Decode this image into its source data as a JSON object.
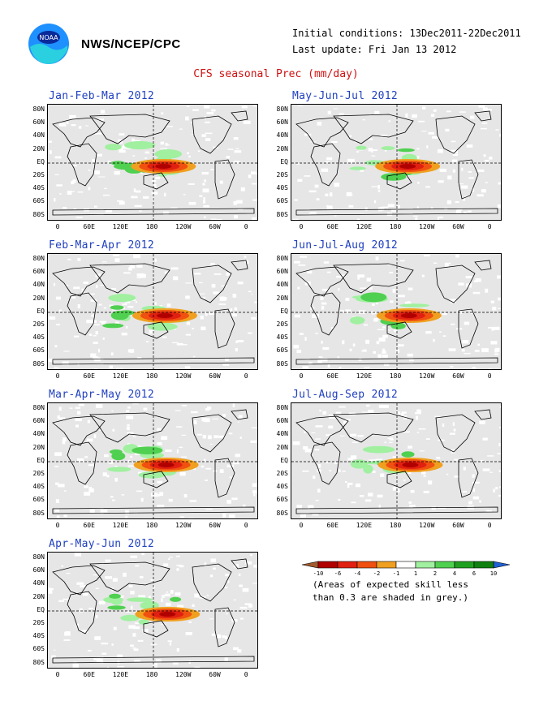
{
  "header": {
    "org": "NWS/NCEP/CPC",
    "initial_conditions": "Initial conditions: 13Dec2011-22Dec2011",
    "last_update": "Last update: Fri Jan 13 2012",
    "logo_text": "NOAA",
    "title": "CFS seasonal Prec (mm/day)"
  },
  "panels": [
    {
      "title": "Jan-Feb-Mar 2012"
    },
    {
      "title": "May-Jun-Jul 2012"
    },
    {
      "title": "Feb-Mar-Apr 2012"
    },
    {
      "title": "Jun-Jul-Aug 2012"
    },
    {
      "title": "Mar-Apr-May 2012"
    },
    {
      "title": "Jul-Aug-Sep 2012"
    },
    {
      "title": "Apr-May-Jun 2012"
    }
  ],
  "axes": {
    "lat_labels": [
      "80N",
      "60N",
      "40N",
      "20N",
      "EQ",
      "20S",
      "40S",
      "60S",
      "80S"
    ],
    "lon_labels": [
      "0",
      "60E",
      "120E",
      "180",
      "120W",
      "60W",
      "0"
    ]
  },
  "legend": {
    "ticks": [
      "-10",
      "-6",
      "-4",
      "-2",
      "-1",
      "1",
      "2",
      "4",
      "6",
      "10"
    ],
    "colors": [
      "#a05a2c",
      "#b00000",
      "#e02010",
      "#f05010",
      "#f0a020",
      "#ffffff",
      "#a0f0a0",
      "#50d050",
      "#20a020",
      "#108010",
      "#2060d0"
    ],
    "skill_note_line1": "(Areas of expected skill less",
    "skill_note_line2": "than 0.3 are shaded in grey.)"
  }
}
